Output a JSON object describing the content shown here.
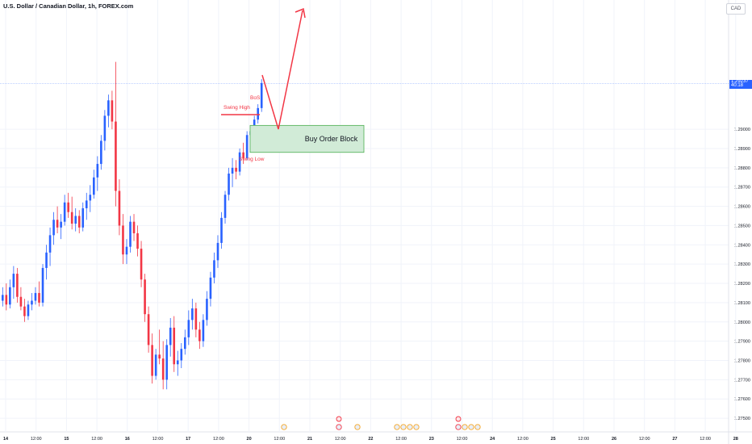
{
  "header": {
    "symbol_title": "U.S. Dollar / Canadian Dollar, 1h, FOREX.com",
    "currency": "CAD"
  },
  "last_price": {
    "value": "1.29237",
    "countdown": "40:18",
    "color": "#2962ff"
  },
  "colors": {
    "up": "#2962ff",
    "down": "#f23645",
    "grid": "#f0f3fa",
    "axis_text": "#131722",
    "annotation": "#f23645",
    "order_block_fill": "#d1ebd7",
    "order_block_border": "#4caf50"
  },
  "chart_data": {
    "type": "candlestick",
    "title": "U.S. Dollar / Canadian Dollar, 1h, FOREX.com",
    "y_axis": {
      "position": "right",
      "ylim": [
        1.2745,
        1.2965
      ],
      "ticks": [
        "1.29000",
        "1.28900",
        "1.28800",
        "1.28700",
        "1.28600",
        "1.28500",
        "1.28400",
        "1.28300",
        "1.28200",
        "1.28100",
        "1.28000",
        "1.27900",
        "1.27800",
        "1.27700",
        "1.27600",
        "1.27500"
      ],
      "tick_labels_shown": [
        "1.29000",
        "1.28900",
        "1.28800",
        "1.28700",
        "1.28600",
        "1.28500",
        "1.28400",
        "1.28300",
        "1.28200",
        "1.28100",
        "1.28000",
        "1.27900",
        "1.27800",
        "1.27700",
        "1.27600",
        "1.27500"
      ]
    },
    "x_axis": {
      "ticks": [
        "14",
        "12:00",
        "15",
        "12:00",
        "16",
        "12:00",
        "17",
        "12:00",
        "20",
        "12:00",
        "21",
        "12:00",
        "22",
        "12:00",
        "23",
        "12:00",
        "24",
        "12:00",
        "25",
        "12:00",
        "26",
        "12:00",
        "27",
        "12:00",
        "28"
      ]
    },
    "grid": true,
    "series": [
      {
        "name": "USDCAD",
        "ohlc": [
          [
            1.2811,
            1.2818,
            1.2808,
            1.2814
          ],
          [
            1.2814,
            1.282,
            1.2806,
            1.2809
          ],
          [
            1.2809,
            1.2822,
            1.2807,
            1.2818
          ],
          [
            1.2818,
            1.2829,
            1.2812,
            1.2825
          ],
          [
            1.2825,
            1.2828,
            1.281,
            1.2813
          ],
          [
            1.2813,
            1.2818,
            1.2806,
            1.2808
          ],
          [
            1.2808,
            1.2812,
            1.28,
            1.2803
          ],
          [
            1.2803,
            1.2811,
            1.2801,
            1.2809
          ],
          [
            1.2809,
            1.2815,
            1.2806,
            1.2811
          ],
          [
            1.2811,
            1.2818,
            1.2809,
            1.2815
          ],
          [
            1.2815,
            1.2821,
            1.2808,
            1.281
          ],
          [
            1.281,
            1.283,
            1.2808,
            1.2828
          ],
          [
            1.2828,
            1.284,
            1.2822,
            1.2836
          ],
          [
            1.2836,
            1.2849,
            1.2829,
            1.2845
          ],
          [
            1.2845,
            1.2857,
            1.284,
            1.2853
          ],
          [
            1.2853,
            1.286,
            1.2846,
            1.2849
          ],
          [
            1.2849,
            1.2856,
            1.2843,
            1.2852
          ],
          [
            1.2852,
            1.2866,
            1.285,
            1.2862
          ],
          [
            1.2862,
            1.2867,
            1.2854,
            1.2857
          ],
          [
            1.2857,
            1.2865,
            1.2848,
            1.2851
          ],
          [
            1.2851,
            1.2859,
            1.2847,
            1.2855
          ],
          [
            1.2855,
            1.2858,
            1.2846,
            1.2849
          ],
          [
            1.2849,
            1.2862,
            1.2847,
            1.2859
          ],
          [
            1.2859,
            1.2867,
            1.2853,
            1.2863
          ],
          [
            1.2863,
            1.2871,
            1.2857,
            1.2866
          ],
          [
            1.2866,
            1.2879,
            1.2864,
            1.2875
          ],
          [
            1.2875,
            1.2886,
            1.2868,
            1.2882
          ],
          [
            1.2882,
            1.2897,
            1.2879,
            1.2894
          ],
          [
            1.2894,
            1.291,
            1.2889,
            1.2907
          ],
          [
            1.2907,
            1.2918,
            1.2901,
            1.2915
          ],
          [
            1.2915,
            1.292,
            1.29,
            1.2904
          ],
          [
            1.2904,
            1.2935,
            1.286,
            1.2868
          ],
          [
            1.2868,
            1.2874,
            1.2845,
            1.285
          ],
          [
            1.285,
            1.2856,
            1.283,
            1.2835
          ],
          [
            1.2835,
            1.2843,
            1.283,
            1.2839
          ],
          [
            1.2839,
            1.2855,
            1.2836,
            1.2852
          ],
          [
            1.2852,
            1.2856,
            1.2842,
            1.2846
          ],
          [
            1.2846,
            1.285,
            1.2834,
            1.2838
          ],
          [
            1.2838,
            1.2842,
            1.2818,
            1.2822
          ],
          [
            1.2822,
            1.2825,
            1.28,
            1.2804
          ],
          [
            1.2804,
            1.2808,
            1.2784,
            1.2788
          ],
          [
            1.2788,
            1.2794,
            1.2768,
            1.2772
          ],
          [
            1.2772,
            1.2786,
            1.277,
            1.2783
          ],
          [
            1.2783,
            1.2796,
            1.2778,
            1.2781
          ],
          [
            1.2781,
            1.279,
            1.2765,
            1.277
          ],
          [
            1.277,
            1.2791,
            1.2765,
            1.2788
          ],
          [
            1.2788,
            1.2802,
            1.2782,
            1.2797
          ],
          [
            1.2797,
            1.2803,
            1.2774,
            1.2778
          ],
          [
            1.2778,
            1.2785,
            1.2772,
            1.278
          ],
          [
            1.278,
            1.2789,
            1.2776,
            1.2786
          ],
          [
            1.2786,
            1.2796,
            1.2783,
            1.2792
          ],
          [
            1.2792,
            1.2806,
            1.2788,
            1.2801
          ],
          [
            1.2801,
            1.2812,
            1.2796,
            1.2807
          ],
          [
            1.2807,
            1.281,
            1.2792,
            1.2796
          ],
          [
            1.2796,
            1.28,
            1.2786,
            1.279
          ],
          [
            1.279,
            1.2804,
            1.2787,
            1.2801
          ],
          [
            1.2801,
            1.2816,
            1.2798,
            1.2812
          ],
          [
            1.2812,
            1.2826,
            1.2808,
            1.2823
          ],
          [
            1.2823,
            1.2836,
            1.282,
            1.2832
          ],
          [
            1.2832,
            1.2845,
            1.2828,
            1.2841
          ],
          [
            1.2841,
            1.2857,
            1.2838,
            1.2854
          ],
          [
            1.2854,
            1.2868,
            1.2851,
            1.2866
          ],
          [
            1.2866,
            1.288,
            1.2863,
            1.2877
          ],
          [
            1.2877,
            1.2885,
            1.287,
            1.288
          ],
          [
            1.288,
            1.2884,
            1.2874,
            1.2878
          ],
          [
            1.2878,
            1.289,
            1.2876,
            1.2888
          ],
          [
            1.2888,
            1.2893,
            1.2882,
            1.2885
          ],
          [
            1.2885,
            1.2899,
            1.2884,
            1.2897
          ],
          [
            1.2897,
            1.2902,
            1.2893,
            1.2899
          ],
          [
            1.2899,
            1.2907,
            1.2897,
            1.2905
          ],
          [
            1.2905,
            1.2913,
            1.2903,
            1.2911
          ],
          [
            1.2911,
            1.2926,
            1.2909,
            1.2924
          ]
        ]
      }
    ],
    "annotations": [
      {
        "type": "label",
        "text": "BoS"
      },
      {
        "type": "label",
        "text": "Swing High"
      },
      {
        "type": "label",
        "text": "Swing Low"
      },
      {
        "type": "zone",
        "text": "Buy Order Block",
        "price_top": 1.2902,
        "price_bottom": 1.2888
      },
      {
        "type": "path",
        "text": "projected move"
      }
    ]
  }
}
